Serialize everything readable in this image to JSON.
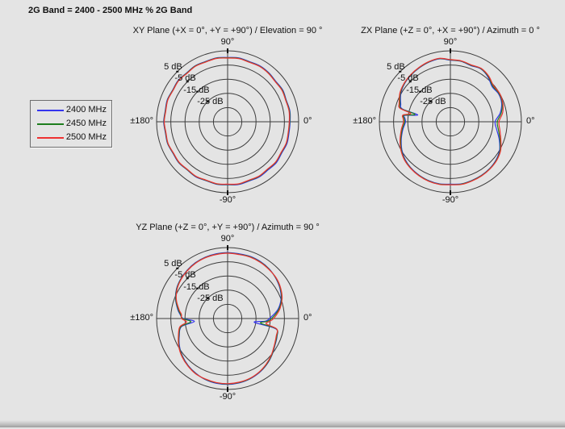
{
  "header": {
    "title": "2G Band = 2400 - 2500 MHz % 2G Band"
  },
  "legend": {
    "items": [
      {
        "label": "2400 MHz",
        "color": "#3535ee"
      },
      {
        "label": "2450 MHz",
        "color": "#1e7d1e"
      },
      {
        "label": "2500 MHz",
        "color": "#ee3232"
      }
    ]
  },
  "chart_data": [
    {
      "id": "xy-plane",
      "type": "polar-line",
      "title": "XY Plane (+X = 0°, +Y = +90°) / Elevation = 90 °",
      "angle_labels": {
        "top": "90°",
        "right": "0°",
        "bottom": "-90°",
        "left": "±180°"
      },
      "radial_axis": {
        "unit": "dB",
        "min_db": -45,
        "max_db": 5,
        "ring_step_db": 10,
        "rings_db": [
          5,
          -5,
          -15,
          -25,
          -35
        ],
        "tick_labels": [
          "5 dB",
          "-5 dB",
          "-15 dB",
          "-25 dB"
        ]
      },
      "angles_deg": [
        0,
        10,
        20,
        30,
        40,
        50,
        60,
        70,
        80,
        90,
        100,
        110,
        120,
        130,
        140,
        150,
        160,
        170,
        180,
        190,
        200,
        210,
        220,
        230,
        240,
        250,
        260,
        270,
        280,
        290,
        300,
        310,
        320,
        330,
        340,
        350
      ],
      "series": [
        {
          "name": "2400 MHz",
          "color": "#3535ee",
          "db": [
            -1.0,
            -0.5,
            -1.0,
            -0.2,
            -0.7,
            0.1,
            0.5,
            0.1,
            0.7,
            0.3,
            0.7,
            0.2,
            0.6,
            -0.1,
            0.4,
            -0.3,
            0.2,
            -0.4,
            0.0,
            -0.5,
            0.0,
            -0.6,
            -0.1,
            -0.7,
            -0.2,
            -0.8,
            -0.3,
            -0.6,
            -0.1,
            -0.6,
            -0.2,
            -0.7,
            -0.2,
            -1.0,
            -0.5,
            -1.1
          ]
        },
        {
          "name": "2450 MHz",
          "color": "#1e7d1e",
          "db": [
            -1.3,
            -0.8,
            -1.2,
            -0.5,
            -1.0,
            -0.2,
            0.2,
            -0.2,
            0.4,
            0.1,
            0.5,
            0.0,
            0.4,
            -0.3,
            0.2,
            -0.5,
            0.0,
            -0.6,
            -0.2,
            -0.7,
            -0.2,
            -0.8,
            -0.3,
            -0.9,
            -0.4,
            -1.0,
            -0.5,
            -0.8,
            -0.4,
            -1.0,
            -0.6,
            -1.2,
            -0.7,
            -1.4,
            -0.9,
            -1.5
          ]
        },
        {
          "name": "2500 MHz",
          "color": "#ee3232",
          "db": [
            -1.6,
            -1.1,
            -1.4,
            -0.8,
            -1.2,
            -0.4,
            0.0,
            -0.4,
            0.2,
            -0.1,
            0.3,
            -0.2,
            0.2,
            -0.5,
            0.0,
            -0.7,
            -0.2,
            -0.8,
            -0.4,
            -0.9,
            -0.4,
            -1.0,
            -0.5,
            -1.1,
            -0.6,
            -1.2,
            -0.7,
            -1.0,
            -0.6,
            -1.2,
            -0.8,
            -1.4,
            -0.9,
            -1.6,
            -1.1,
            -1.7
          ]
        }
      ]
    },
    {
      "id": "zx-plane",
      "type": "polar-line",
      "title": "ZX Plane (+Z = 0°, +X = +90°) / Azimuth = 0 °",
      "angle_labels": {
        "top": "90°",
        "right": "0°",
        "bottom": "-90°",
        "left": "±180°"
      },
      "radial_axis": {
        "unit": "dB",
        "min_db": -45,
        "max_db": 5,
        "ring_step_db": 10,
        "rings_db": [
          5,
          -5,
          -15,
          -25,
          -35
        ],
        "tick_labels": [
          "5 dB",
          "-5 dB",
          "-15 dB",
          "-25 dB"
        ]
      },
      "angles_deg": [
        0,
        10,
        20,
        30,
        40,
        50,
        60,
        70,
        80,
        90,
        100,
        110,
        120,
        130,
        140,
        150,
        160,
        165,
        168,
        172,
        176,
        180,
        184,
        190,
        200,
        210,
        220,
        230,
        240,
        250,
        260,
        270,
        280,
        290,
        300,
        310,
        320,
        330,
        340,
        350
      ],
      "series": [
        {
          "name": "2400 MHz",
          "color": "#3535ee",
          "db": [
            -13.5,
            -9.4,
            -6.6,
            -5.8,
            -6.6,
            -3.8,
            -2.0,
            -2.9,
            -1.8,
            -1.6,
            0.0,
            -0.4,
            -1.2,
            -2.0,
            -3.0,
            -4.8,
            -7.8,
            -10.0,
            -21.5,
            -12.6,
            -13.0,
            -13.4,
            -12.6,
            -10.9,
            -8.2,
            -5.6,
            -3.5,
            -2.2,
            -1.4,
            -0.8,
            -0.6,
            -1.0,
            -0.6,
            -1.0,
            -1.4,
            -2.0,
            -3.1,
            -5.0,
            -8.4,
            -11.8
          ]
        },
        {
          "name": "2450 MHz",
          "color": "#1e7d1e",
          "db": [
            -12.0,
            -8.6,
            -6.2,
            -5.4,
            -6.0,
            -3.4,
            -1.8,
            -2.6,
            -1.6,
            -1.4,
            0.2,
            -0.2,
            -1.0,
            -1.8,
            -2.8,
            -4.4,
            -7.2,
            -9.0,
            -19.5,
            -12.0,
            -12.4,
            -12.8,
            -12.0,
            -10.4,
            -7.8,
            -5.2,
            -3.2,
            -2.0,
            -1.2,
            -0.6,
            -0.4,
            -0.8,
            -0.4,
            -0.8,
            -1.2,
            -1.8,
            -2.8,
            -4.6,
            -7.8,
            -10.6
          ]
        },
        {
          "name": "2500 MHz",
          "color": "#ee3232",
          "db": [
            -10.8,
            -7.6,
            -5.8,
            -5.0,
            -5.4,
            -3.0,
            -1.6,
            -2.3,
            -1.4,
            -1.2,
            0.4,
            0.0,
            -0.8,
            -1.6,
            -2.6,
            -4.0,
            -6.6,
            -8.2,
            -16.5,
            -11.2,
            -11.6,
            -12.0,
            -11.3,
            -9.8,
            -7.3,
            -4.8,
            -2.9,
            -1.8,
            -1.0,
            -0.4,
            -0.2,
            -0.6,
            -0.2,
            -0.6,
            -1.0,
            -1.6,
            -2.5,
            -4.2,
            -7.2,
            -9.6
          ]
        }
      ]
    },
    {
      "id": "yz-plane",
      "type": "polar-line",
      "title": "YZ Plane (+Z = 0°, +Y = +90°) / Azimuth = 90 °",
      "angle_labels": {
        "top": "90°",
        "right": "0°",
        "bottom": "-90°",
        "left": "±180°"
      },
      "radial_axis": {
        "unit": "dB",
        "min_db": -45,
        "max_db": 5,
        "ring_step_db": 10,
        "rings_db": [
          5,
          -5,
          -15,
          -25,
          -35
        ],
        "tick_labels": [
          "5 dB",
          "-5 dB",
          "-15 dB",
          "-25 dB"
        ]
      },
      "angles_deg": [
        0,
        10,
        20,
        30,
        40,
        50,
        60,
        70,
        80,
        90,
        100,
        110,
        120,
        130,
        140,
        150,
        160,
        170,
        175,
        180,
        185,
        190,
        200,
        210,
        220,
        230,
        240,
        250,
        260,
        270,
        280,
        290,
        300,
        310,
        320,
        330,
        340,
        348,
        352,
        356
      ],
      "series": [
        {
          "name": "2400 MHz",
          "color": "#3535ee",
          "db": [
            -15.5,
            -9.2,
            -5.0,
            -2.5,
            -0.8,
            0.6,
            1.3,
            1.6,
            1.3,
            1.5,
            1.3,
            1.0,
            0.4,
            -0.6,
            -1.8,
            -3.4,
            -6.0,
            -9.4,
            -11.4,
            -13.8,
            -21.5,
            -12.0,
            -8.8,
            -5.9,
            -3.6,
            -1.8,
            -0.4,
            0.8,
            1.3,
            1.4,
            1.1,
            0.4,
            -0.8,
            -2.4,
            -4.4,
            -6.6,
            -8.0,
            -10.5,
            -26.0,
            -18.5
          ]
        },
        {
          "name": "2450 MHz",
          "color": "#1e7d1e",
          "db": [
            -14.0,
            -8.5,
            -4.6,
            -2.2,
            -0.6,
            0.4,
            1.0,
            1.3,
            1.0,
            1.2,
            1.0,
            0.8,
            0.2,
            -0.8,
            -2.0,
            -3.6,
            -6.2,
            -9.8,
            -11.8,
            -13.2,
            -19.0,
            -11.5,
            -8.5,
            -5.6,
            -3.4,
            -1.6,
            -0.2,
            0.6,
            1.0,
            1.1,
            0.8,
            0.2,
            -1.0,
            -2.6,
            -4.6,
            -6.8,
            -8.2,
            -10.0,
            -21.5,
            -17.0
          ]
        },
        {
          "name": "2500 MHz",
          "color": "#ee3232",
          "db": [
            -12.6,
            -7.8,
            -4.2,
            -1.9,
            -0.4,
            0.2,
            0.8,
            1.1,
            0.8,
            1.0,
            0.8,
            0.6,
            0.0,
            -1.0,
            -2.2,
            -3.9,
            -6.6,
            -10.4,
            -12.4,
            -12.6,
            -16.0,
            -10.8,
            -8.1,
            -5.3,
            -3.1,
            -1.4,
            0.0,
            0.4,
            0.8,
            0.9,
            0.6,
            0.0,
            -1.2,
            -2.9,
            -4.9,
            -7.1,
            -8.6,
            -9.6,
            -17.5,
            -15.5
          ]
        }
      ]
    }
  ]
}
